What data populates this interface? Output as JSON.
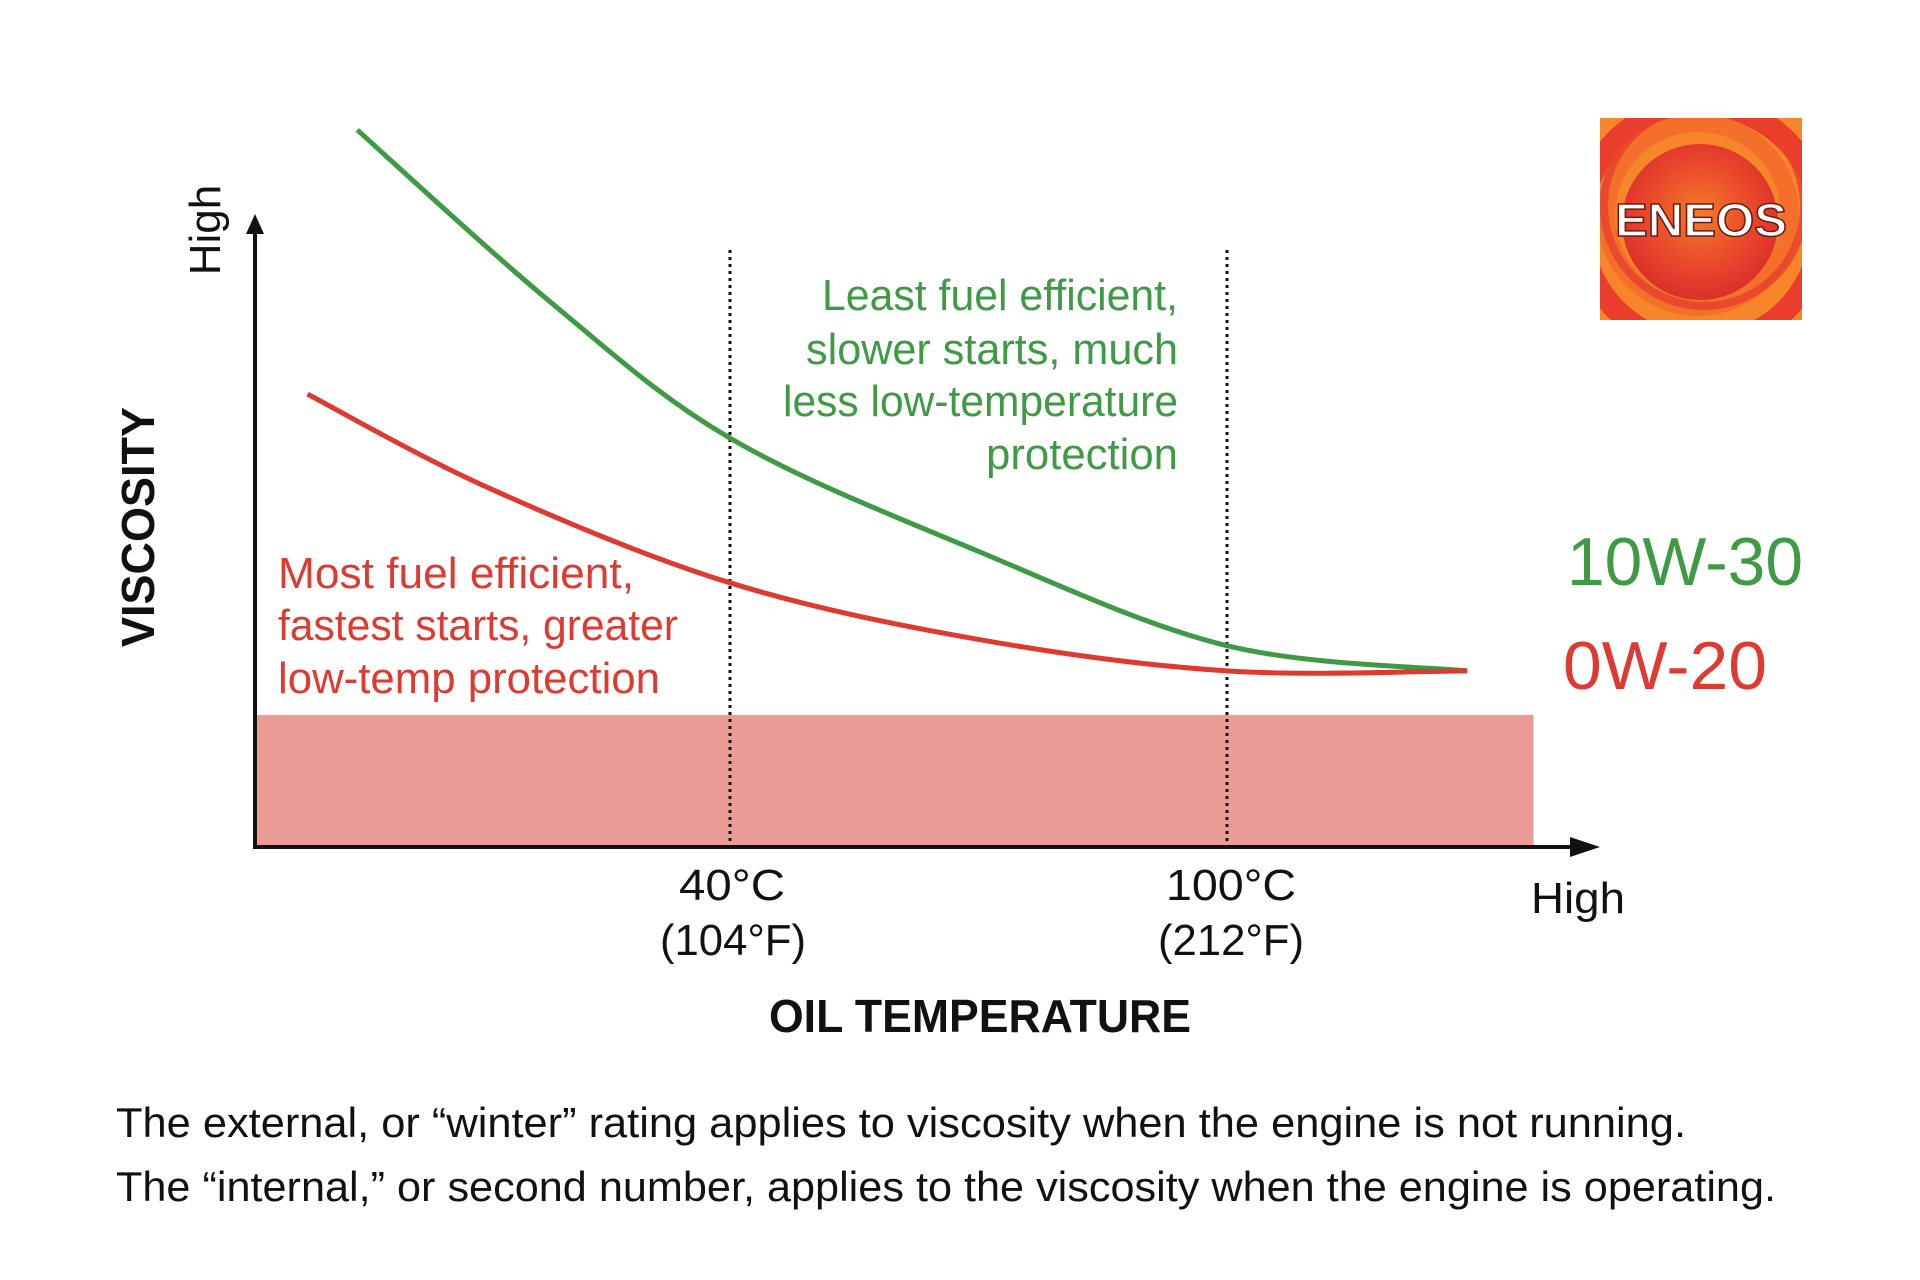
{
  "chart_data": {
    "type": "line",
    "title": "",
    "xlabel": "OIL TEMPERATURE",
    "ylabel": "VISCOSITY",
    "x_axis_end_label": "High",
    "y_axis_end_label": "High",
    "x_ticks": [
      {
        "value": 40,
        "label_c": "40°C",
        "label_f": "(104°F)"
      },
      {
        "value": 100,
        "label_c": "100°C",
        "label_f": "(212°F)"
      }
    ],
    "x_unit": "°C",
    "y_unit": "relative viscosity (unlabeled)",
    "xlim": [
      -17,
      138
    ],
    "ylim": [
      0,
      100
    ],
    "gridlines": "dotted vertical at 40°C and 100°C",
    "series": [
      {
        "name": "10W-30",
        "color": "#3f9a45",
        "x": [
          -5,
          18,
          40,
          70,
          100,
          129
        ],
        "y": [
          114,
          87,
          65,
          47,
          32,
          28
        ]
      },
      {
        "name": "0W-20",
        "color": "#de3a32",
        "x": [
          -11,
          11,
          40,
          70,
          100,
          129
        ],
        "y": [
          72,
          57,
          42,
          33,
          28,
          28
        ]
      }
    ],
    "shaded_band": {
      "color": "#ec9a96",
      "x_range": [
        -17,
        137
      ],
      "y_range": [
        0,
        21
      ]
    },
    "annotations": {
      "red": [
        "Most fuel efficient,",
        "fastest starts, greater",
        "low-temp protection"
      ],
      "green": [
        "Least fuel efficient,",
        "slower starts, much",
        "less low-temperature",
        "protection"
      ]
    }
  },
  "logo": {
    "text": "ENEOS"
  },
  "caption": [
    "The external, or “winter” rating applies to viscosity when the engine is not running.",
    "The “internal,” or second number, applies to the viscosity when the engine is operating."
  ]
}
